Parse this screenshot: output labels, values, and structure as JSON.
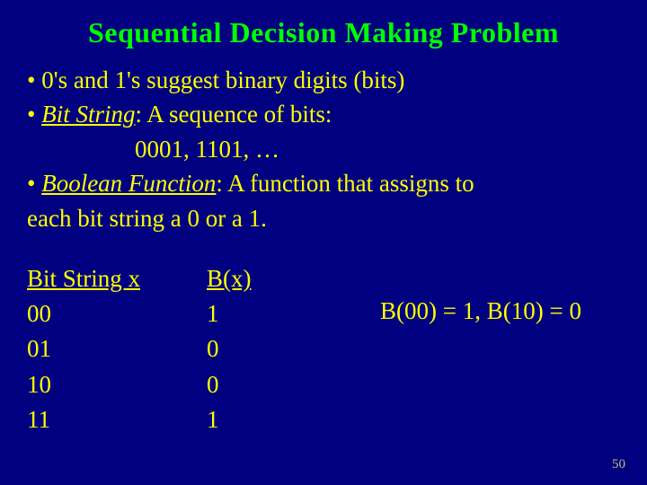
{
  "title": "Sequential Decision Making Problem",
  "bullets": {
    "b1": "0's and 1's suggest binary digits (bits)",
    "b2_term": "Bit String",
    "b2_rest": ": A sequence of bits:",
    "b2_example": "0001, 1101, …",
    "b3_term": "Boolean Function",
    "b3_rest": ": A function that assigns to",
    "b3_cont": "each bit string a 0 or a 1."
  },
  "table": {
    "h1": "Bit String x",
    "h2": "B(x)",
    "rows": [
      {
        "x": "00",
        "bx": "1"
      },
      {
        "x": "01",
        "bx": "0"
      },
      {
        "x": "10",
        "bx": "0"
      },
      {
        "x": "11",
        "bx": "1"
      }
    ],
    "note": "B(00) = 1, B(10) = 0"
  },
  "page_number": "50",
  "colors": {
    "background": "#000080",
    "title": "#00ff00",
    "body": "#ffff00"
  },
  "typography": {
    "title_fontsize": 32,
    "body_fontsize": 27,
    "font_family": "Times New Roman"
  }
}
